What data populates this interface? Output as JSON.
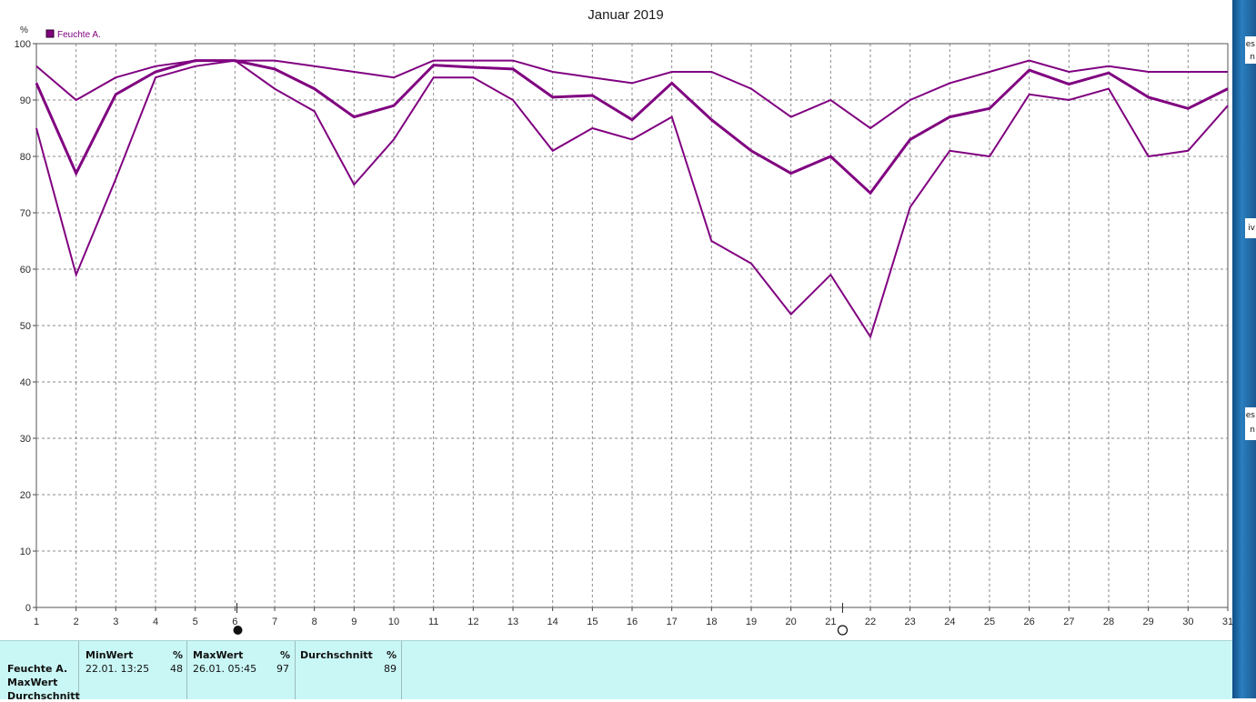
{
  "chart_data": {
    "type": "line",
    "title": "Januar 2019",
    "ylabel": "%",
    "xlabel": "",
    "ylim": [
      0,
      100
    ],
    "yticks": [
      0,
      10,
      20,
      30,
      40,
      50,
      60,
      70,
      80,
      90,
      100
    ],
    "grid": true,
    "legend_position": "top-left",
    "legend": [
      "Feuchte A."
    ],
    "color": "#800080",
    "x": [
      1,
      2,
      3,
      4,
      5,
      6,
      7,
      8,
      9,
      10,
      11,
      12,
      13,
      14,
      15,
      16,
      17,
      18,
      19,
      20,
      21,
      22,
      23,
      24,
      25,
      26,
      27,
      28,
      29,
      30,
      31
    ],
    "series": [
      {
        "name": "Feuchte A.",
        "values": [
          93,
          77,
          91,
          95,
          97,
          97,
          95.5,
          92,
          87,
          89,
          96.2,
          95.8,
          95.5,
          90.5,
          90.8,
          86.5,
          93,
          86.5,
          81,
          77,
          80,
          73.5,
          83,
          87,
          88.5,
          95.3,
          92.8,
          94.8,
          90.5,
          88.5,
          92
        ]
      },
      {
        "values": [
          96,
          90,
          94,
          96,
          97,
          97,
          97,
          96,
          95,
          94,
          97,
          97,
          97,
          95,
          94,
          93,
          95,
          95,
          92,
          87,
          90,
          85,
          90,
          93,
          95,
          97,
          95,
          96,
          95,
          95,
          95
        ]
      },
      {
        "values": [
          85,
          59,
          76,
          94,
          96,
          97,
          92,
          88,
          75,
          83,
          94,
          94,
          90,
          81,
          85,
          83,
          87,
          65,
          61,
          52,
          59,
          48,
          71,
          81,
          80,
          91,
          90,
          92,
          80,
          81,
          89
        ]
      }
    ],
    "markers": [
      {
        "x": 6.05,
        "symbol": "filled-circle"
      },
      {
        "x": 21.3,
        "symbol": "open-circle"
      }
    ]
  },
  "stats": {
    "row_labels": [
      "Feuchte A.",
      "MaxWert",
      "Durchschnitt"
    ],
    "min": {
      "label": "MinWert",
      "unit": "%",
      "date": "22.01.  13:25",
      "value": "48"
    },
    "max": {
      "label": "MaxWert",
      "unit": "%",
      "date": "26.01.  05:45",
      "value": "97"
    },
    "avg": {
      "label": "Durchschnitt",
      "unit": "%",
      "value": "89"
    }
  },
  "right_edge_fragments": [
    "es",
    "n",
    "iv",
    "es",
    "n"
  ]
}
